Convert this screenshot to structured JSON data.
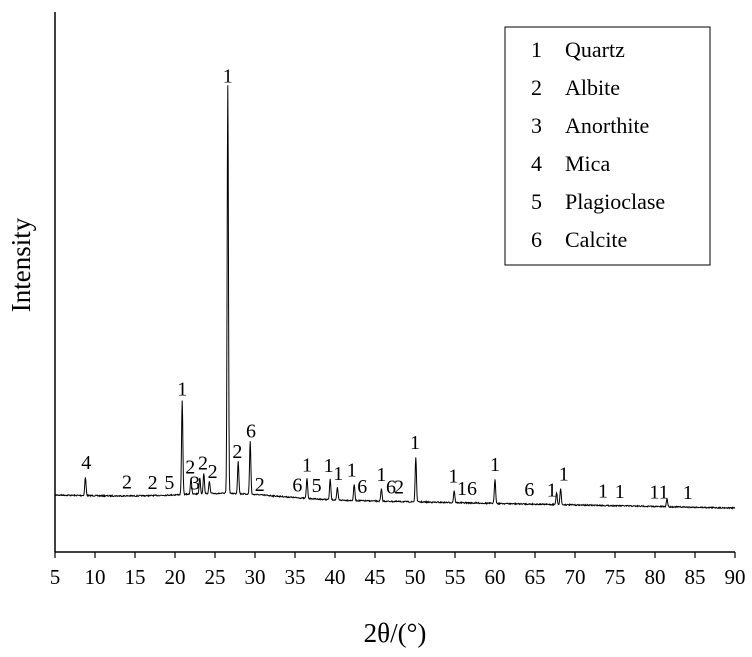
{
  "chart_data": {
    "type": "line",
    "xlabel": "2θ/(°)",
    "ylabel": "Intensity",
    "xlim": [
      5,
      90
    ],
    "x_ticks": [
      "5",
      "10",
      "15",
      "20",
      "25",
      "30",
      "35",
      "40",
      "45",
      "50",
      "55",
      "60",
      "65",
      "70",
      "75",
      "80",
      "85",
      "90"
    ],
    "y_ticks_shown": false,
    "legend": {
      "position": "top-right",
      "entries": [
        {
          "key": "1",
          "label": "Quartz"
        },
        {
          "key": "2",
          "label": "Albite"
        },
        {
          "key": "3",
          "label": "Anorthite"
        },
        {
          "key": "4",
          "label": "Mica"
        },
        {
          "key": "5",
          "label": "Plagioclase"
        },
        {
          "key": "6",
          "label": "Calcite"
        }
      ]
    },
    "series": [
      {
        "intensity_scale": [
          0,
          100
        ],
        "peaks": [
          {
            "x": 8.8,
            "y": 4.5
          },
          {
            "x": 20.9,
            "y": 23
          },
          {
            "x": 22.0,
            "y": 4
          },
          {
            "x": 23.1,
            "y": 4
          },
          {
            "x": 23.6,
            "y": 5
          },
          {
            "x": 24.3,
            "y": 3
          },
          {
            "x": 26.6,
            "y": 100
          },
          {
            "x": 27.9,
            "y": 8
          },
          {
            "x": 29.4,
            "y": 13
          },
          {
            "x": 36.5,
            "y": 5
          },
          {
            "x": 39.4,
            "y": 5
          },
          {
            "x": 40.3,
            "y": 3
          },
          {
            "x": 42.4,
            "y": 4
          },
          {
            "x": 45.8,
            "y": 3
          },
          {
            "x": 50.1,
            "y": 11
          },
          {
            "x": 54.9,
            "y": 3
          },
          {
            "x": 60.0,
            "y": 6
          },
          {
            "x": 67.7,
            "y": 3
          },
          {
            "x": 68.2,
            "y": 4
          },
          {
            "x": 81.5,
            "y": 2
          }
        ]
      }
    ],
    "peak_labels": [
      {
        "x": 8.9,
        "text": "4"
      },
      {
        "x": 14.0,
        "text": "2"
      },
      {
        "x": 17.2,
        "text": "2"
      },
      {
        "x": 19.3,
        "text": "5"
      },
      {
        "x": 20.9,
        "text": "1"
      },
      {
        "x": 21.9,
        "text": "2"
      },
      {
        "x": 22.5,
        "text": "3"
      },
      {
        "x": 23.5,
        "text": "2"
      },
      {
        "x": 24.7,
        "text": "2"
      },
      {
        "x": 26.6,
        "text": "1"
      },
      {
        "x": 27.8,
        "text": "2"
      },
      {
        "x": 29.5,
        "text": "6"
      },
      {
        "x": 30.6,
        "text": "2"
      },
      {
        "x": 35.3,
        "text": "6"
      },
      {
        "x": 36.5,
        "text": "1"
      },
      {
        "x": 37.7,
        "text": "5"
      },
      {
        "x": 39.2,
        "text": "1"
      },
      {
        "x": 40.4,
        "text": "1"
      },
      {
        "x": 42.1,
        "text": "1"
      },
      {
        "x": 43.4,
        "text": "6"
      },
      {
        "x": 45.8,
        "text": "1"
      },
      {
        "x": 47.0,
        "text": "6"
      },
      {
        "x": 48.0,
        "text": "2"
      },
      {
        "x": 50.0,
        "text": "1"
      },
      {
        "x": 54.8,
        "text": "1"
      },
      {
        "x": 56.5,
        "text": "16"
      },
      {
        "x": 60.0,
        "text": "1"
      },
      {
        "x": 64.3,
        "text": "6"
      },
      {
        "x": 67.1,
        "text": "1"
      },
      {
        "x": 68.6,
        "text": "1"
      },
      {
        "x": 73.5,
        "text": "1"
      },
      {
        "x": 75.6,
        "text": "1"
      },
      {
        "x": 80.5,
        "text": "11"
      },
      {
        "x": 84.1,
        "text": "1"
      }
    ]
  }
}
